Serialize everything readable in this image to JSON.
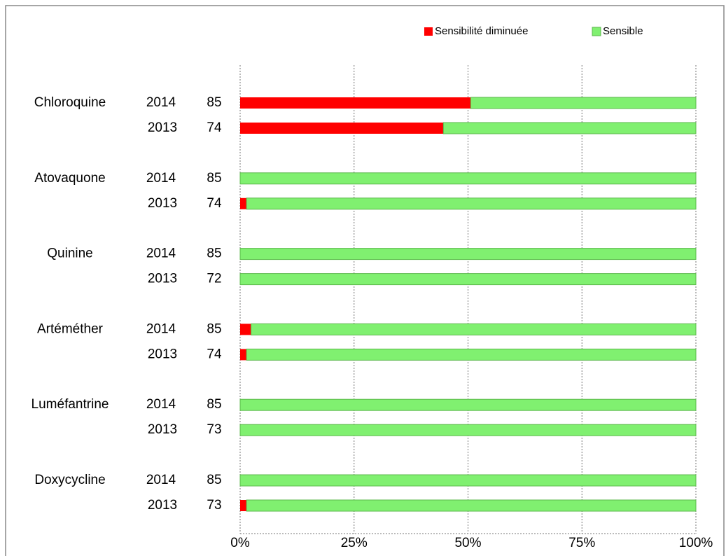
{
  "chart_data": {
    "type": "stacked_barh",
    "groups": [
      "Chloroquine",
      "Atovaquone",
      "Quinine",
      "Artéméther",
      "Luméfantrine",
      "Doxycycline"
    ],
    "categories": [
      "2014",
      "2013",
      "2014",
      "2013",
      "2014",
      "2013",
      "2014",
      "2013",
      "2014",
      "2013",
      "2014",
      "2013"
    ],
    "counts": [
      85,
      74,
      85,
      74,
      85,
      72,
      85,
      74,
      85,
      73,
      85,
      73
    ],
    "series": [
      {
        "name": "Sensibilité diminuée",
        "color": "#ff0000",
        "values": [
          50.6,
          44.6,
          0,
          1.4,
          0,
          0,
          2.4,
          1.4,
          0,
          0,
          0,
          1.4
        ]
      },
      {
        "name": "Sensible",
        "color": "#80f070",
        "values": [
          49.4,
          55.4,
          100,
          98.6,
          100,
          100,
          97.6,
          98.6,
          100,
          100,
          100,
          98.6
        ]
      }
    ],
    "xlim": [
      0,
      100
    ],
    "xticks": [
      {
        "value": 0,
        "label": "0%"
      },
      {
        "value": 25,
        "label": "25%"
      },
      {
        "value": 50,
        "label": "50%"
      },
      {
        "value": 75,
        "label": "75%"
      },
      {
        "value": 100,
        "label": "100%"
      }
    ],
    "grid": true,
    "legend": "top"
  }
}
